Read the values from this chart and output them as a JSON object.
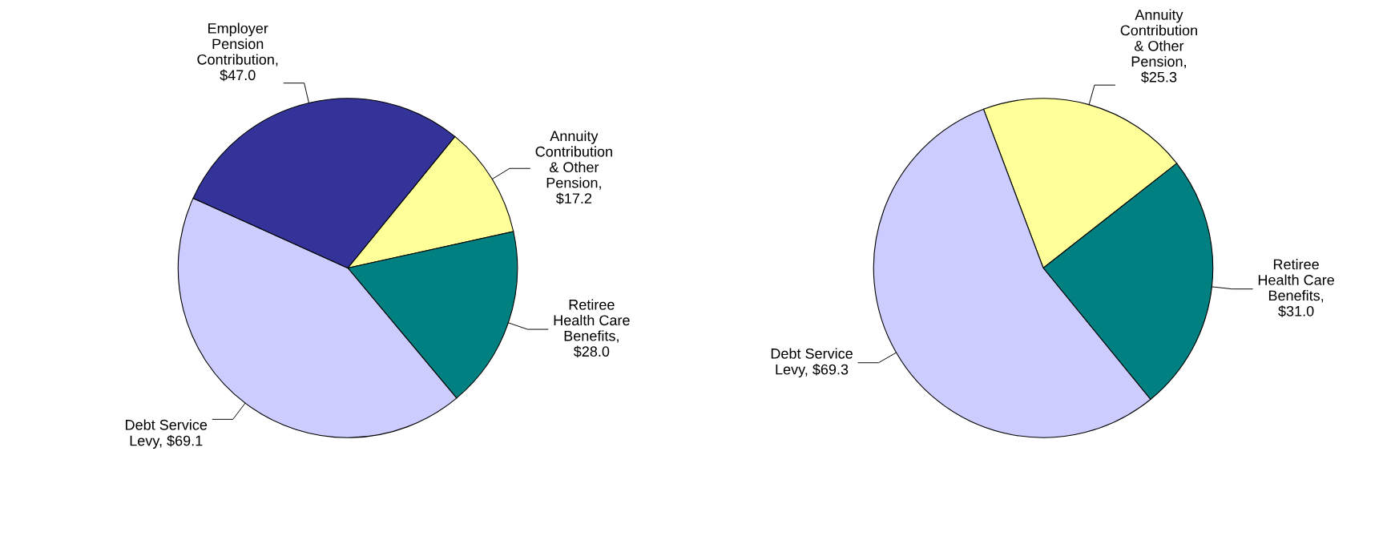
{
  "chart_data": [
    {
      "type": "pie",
      "categories": [
        "Annuity Contribution & Other Pension",
        "Retiree Health Care Benefits",
        "Debt Service Levy",
        "Employer Pension Contribution"
      ],
      "values": [
        17.2,
        28.0,
        69.1,
        47.0
      ],
      "value_labels": [
        ", $17.2",
        ", $28.0",
        ", $69.1",
        ", $47.0"
      ],
      "colors": [
        "#ffff99",
        "#008080",
        "#ccccff",
        "#333399"
      ]
    },
    {
      "type": "pie",
      "categories": [
        "Annuity Contribution & Other Pension",
        "Retiree Health Care Benefits",
        "Debt Service Levy"
      ],
      "values": [
        25.3,
        31.0,
        69.3
      ],
      "value_labels": [
        ", $25.3",
        ", $31.0",
        ", $69.3"
      ],
      "colors": [
        "#ffff99",
        "#008080",
        "#ccccff"
      ]
    }
  ]
}
